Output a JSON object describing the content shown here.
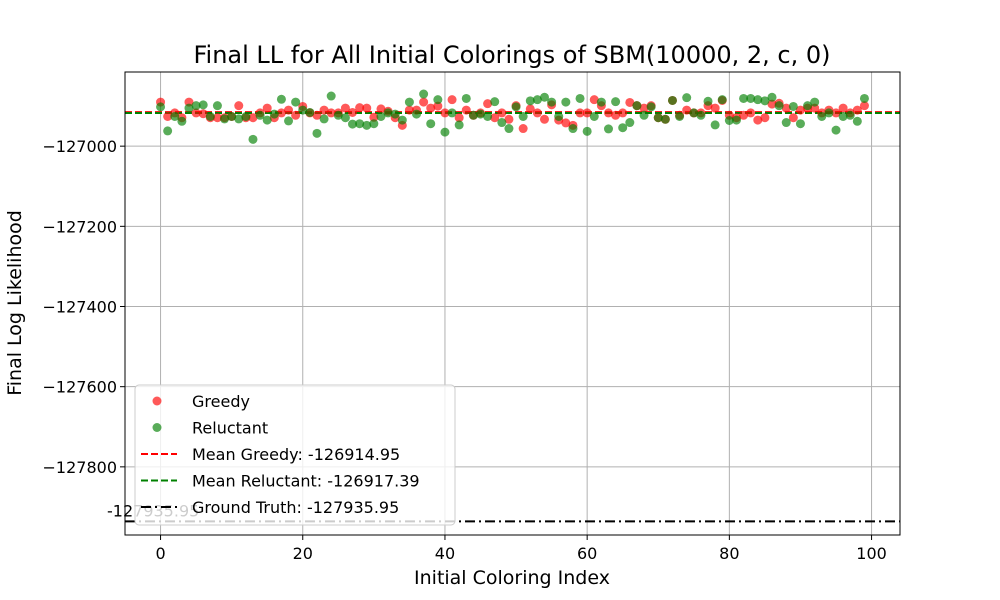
{
  "chart_data": {
    "type": "scatter",
    "title": "Final LL for All Initial Colorings of SBM(10000, 2, c, 0)",
    "xlabel": "Initial Coloring Index",
    "ylabel": "Final Log Likelihood",
    "xlim": [
      -5,
      104
    ],
    "ylim": [
      -127970,
      -126815
    ],
    "xticks": [
      0,
      20,
      40,
      60,
      80,
      100
    ],
    "yticks": [
      -127000,
      -127200,
      -127400,
      -127600,
      -127800
    ],
    "grid": true,
    "legend_position": "lower-left",
    "series": [
      {
        "name": "Greedy",
        "color": "#ff0000",
        "x": [
          0,
          1,
          2,
          3,
          4,
          5,
          6,
          7,
          8,
          9,
          10,
          11,
          12,
          13,
          14,
          15,
          16,
          17,
          18,
          19,
          20,
          21,
          22,
          23,
          24,
          25,
          26,
          27,
          28,
          29,
          30,
          31,
          32,
          33,
          34,
          35,
          36,
          37,
          38,
          39,
          40,
          41,
          42,
          43,
          44,
          45,
          46,
          47,
          48,
          49,
          50,
          51,
          52,
          53,
          54,
          55,
          56,
          57,
          58,
          59,
          60,
          61,
          62,
          63,
          64,
          65,
          66,
          67,
          68,
          69,
          70,
          71,
          72,
          73,
          74,
          75,
          76,
          77,
          78,
          79,
          80,
          81,
          82,
          83,
          84,
          85,
          86,
          87,
          88,
          89,
          90,
          91,
          92,
          93,
          94,
          95,
          96,
          97,
          98,
          99
        ],
        "values": [
          -126890,
          -126926,
          -126917,
          -126929,
          -126890,
          -126917,
          -126919,
          -126929,
          -126929,
          -126929,
          -126926,
          -126899,
          -126929,
          -126929,
          -126917,
          -126905,
          -126929,
          -126917,
          -126910,
          -126923,
          -126901,
          -126917,
          -126923,
          -126910,
          -126917,
          -126917,
          -126905,
          -126916,
          -126904,
          -126905,
          -126928,
          -126907,
          -126913,
          -126929,
          -126948,
          -126910,
          -126910,
          -126890,
          -126905,
          -126900,
          -126917,
          -126884,
          -126929,
          -126910,
          -126923,
          -126917,
          -126894,
          -126929,
          -126917,
          -126933,
          -126899,
          -126956,
          -126907,
          -126917,
          -126933,
          -126897,
          -126935,
          -126942,
          -126948,
          -126917,
          -126917,
          -126884,
          -126899,
          -126917,
          -126923,
          -126917,
          -126891,
          -126899,
          -126905,
          -126899,
          -126929,
          -126933,
          -126886,
          -126923,
          -126910,
          -126917,
          -126917,
          -126899,
          -126905,
          -126886,
          -126923,
          -126929,
          -126923,
          -126917,
          -126935,
          -126929,
          -126895,
          -126893,
          -126905,
          -126929,
          -126910,
          -126905,
          -126905,
          -126917,
          -126910,
          -126917,
          -126905,
          -126917,
          -126910,
          -126899
        ]
      },
      {
        "name": "Reluctant",
        "color": "#008000",
        "x": [
          0,
          1,
          2,
          3,
          4,
          5,
          6,
          7,
          8,
          9,
          10,
          11,
          12,
          13,
          14,
          15,
          16,
          17,
          18,
          19,
          20,
          21,
          22,
          23,
          24,
          25,
          26,
          27,
          28,
          29,
          30,
          31,
          32,
          33,
          34,
          35,
          36,
          37,
          38,
          39,
          40,
          41,
          42,
          43,
          44,
          45,
          46,
          47,
          48,
          49,
          50,
          51,
          52,
          53,
          54,
          55,
          56,
          57,
          58,
          59,
          60,
          61,
          62,
          63,
          64,
          65,
          66,
          67,
          68,
          69,
          70,
          71,
          72,
          73,
          74,
          75,
          76,
          77,
          78,
          79,
          80,
          81,
          82,
          83,
          84,
          85,
          86,
          87,
          88,
          89,
          90,
          91,
          92,
          93,
          94,
          95,
          96,
          97,
          98,
          99
        ],
        "values": [
          -126902,
          -126962,
          -126926,
          -126938,
          -126905,
          -126899,
          -126897,
          -126926,
          -126899,
          -126932,
          -126926,
          -126932,
          -126926,
          -126983,
          -126923,
          -126935,
          -126920,
          -126883,
          -126937,
          -126890,
          -126910,
          -126916,
          -126968,
          -126932,
          -126875,
          -126923,
          -126929,
          -126945,
          -126944,
          -126948,
          -126944,
          -126926,
          -126917,
          -126920,
          -126935,
          -126890,
          -126920,
          -126870,
          -126944,
          -126884,
          -126965,
          -126917,
          -126947,
          -126881,
          -126923,
          -126920,
          -126926,
          -126889,
          -126941,
          -126956,
          -126902,
          -126926,
          -126887,
          -126884,
          -126878,
          -126890,
          -126926,
          -126890,
          -126956,
          -126881,
          -126963,
          -126926,
          -126890,
          -126957,
          -126889,
          -126954,
          -126941,
          -126899,
          -126923,
          -126902,
          -126929,
          -126933,
          -126886,
          -126926,
          -126879,
          -126917,
          -126923,
          -126888,
          -126947,
          -126884,
          -126936,
          -126935,
          -126881,
          -126881,
          -126884,
          -126887,
          -126878,
          -126899,
          -126941,
          -126901,
          -126944,
          -126899,
          -126890,
          -126926,
          -126917,
          -126960,
          -126926,
          -126923,
          -126938,
          -126881
        ]
      }
    ],
    "lines": [
      {
        "label": "Mean Greedy: -126914.95",
        "y": -126914.95,
        "color": "#ff0000",
        "style": "dashed"
      },
      {
        "label": "Mean Reluctant: -126917.39",
        "y": -126917.39,
        "color": "#008000",
        "style": "dashed"
      },
      {
        "label": "Ground Truth: -127935.95",
        "y": -127935.95,
        "color": "#000000",
        "style": "dashdot"
      }
    ],
    "annotations": [
      {
        "text": "-127935.95",
        "x": -5,
        "y": -127935.95
      }
    ]
  }
}
